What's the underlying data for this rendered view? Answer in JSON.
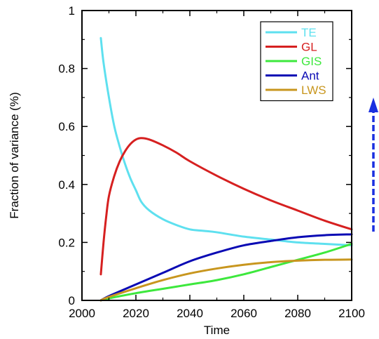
{
  "chart_data": {
    "type": "line",
    "title": "",
    "xlabel": "Time",
    "ylabel": "Fraction of variance (%)",
    "xlim": [
      2000,
      2100
    ],
    "ylim": [
      0,
      1
    ],
    "xticks": [
      "2000",
      "2020",
      "2040",
      "2060",
      "2080",
      "2100"
    ],
    "yticks": [
      "0",
      "0.2",
      "0.4",
      "0.6",
      "0.8",
      "1"
    ],
    "xtick_values": [
      2000,
      2020,
      2040,
      2060,
      2080,
      2100
    ],
    "ytick_values": [
      0,
      0.2,
      0.4,
      0.6,
      0.8,
      1
    ],
    "grid": false,
    "legend_position": "top-right",
    "series": [
      {
        "name": "TE",
        "color": "#5ee0ef",
        "x": [
          2007,
          2008,
          2010,
          2012,
          2014,
          2016,
          2018,
          2020,
          2022,
          2025,
          2030,
          2035,
          2040,
          2045,
          2050,
          2060,
          2070,
          2080,
          2090,
          2100
        ],
        "y": [
          0.905,
          0.82,
          0.7,
          0.6,
          0.53,
          0.47,
          0.42,
          0.38,
          0.34,
          0.31,
          0.28,
          0.26,
          0.245,
          0.24,
          0.235,
          0.22,
          0.21,
          0.2,
          0.195,
          0.19
        ]
      },
      {
        "name": "GL",
        "color": "#d62020",
        "x": [
          2007,
          2008,
          2009,
          2010,
          2012,
          2014,
          2016,
          2018,
          2020,
          2022,
          2025,
          2030,
          2035,
          2040,
          2050,
          2060,
          2070,
          2080,
          2090,
          2100
        ],
        "y": [
          0.09,
          0.2,
          0.29,
          0.36,
          0.43,
          0.48,
          0.515,
          0.54,
          0.555,
          0.56,
          0.555,
          0.535,
          0.51,
          0.48,
          0.43,
          0.385,
          0.345,
          0.31,
          0.275,
          0.245
        ]
      },
      {
        "name": "GIS",
        "color": "#3de83d",
        "x": [
          2007,
          2010,
          2020,
          2030,
          2040,
          2050,
          2060,
          2070,
          2080,
          2090,
          2100
        ],
        "y": [
          0.0,
          0.007,
          0.025,
          0.04,
          0.055,
          0.07,
          0.09,
          0.115,
          0.14,
          0.165,
          0.195
        ]
      },
      {
        "name": "Ant",
        "color": "#0a0ab4",
        "x": [
          2007,
          2010,
          2020,
          2030,
          2040,
          2050,
          2060,
          2070,
          2080,
          2090,
          2100
        ],
        "y": [
          0.0,
          0.015,
          0.055,
          0.095,
          0.135,
          0.165,
          0.19,
          0.205,
          0.218,
          0.225,
          0.228
        ]
      },
      {
        "name": "LWS",
        "color": "#c8961e",
        "x": [
          2007,
          2010,
          2020,
          2030,
          2040,
          2050,
          2060,
          2070,
          2080,
          2090,
          2100
        ],
        "y": [
          0.0,
          0.012,
          0.042,
          0.07,
          0.093,
          0.11,
          0.123,
          0.132,
          0.137,
          0.14,
          0.141
        ]
      }
    ],
    "annotations": [
      {
        "kind": "dashed-arrow",
        "direction": "up",
        "color": "#1a2fe0"
      }
    ]
  }
}
